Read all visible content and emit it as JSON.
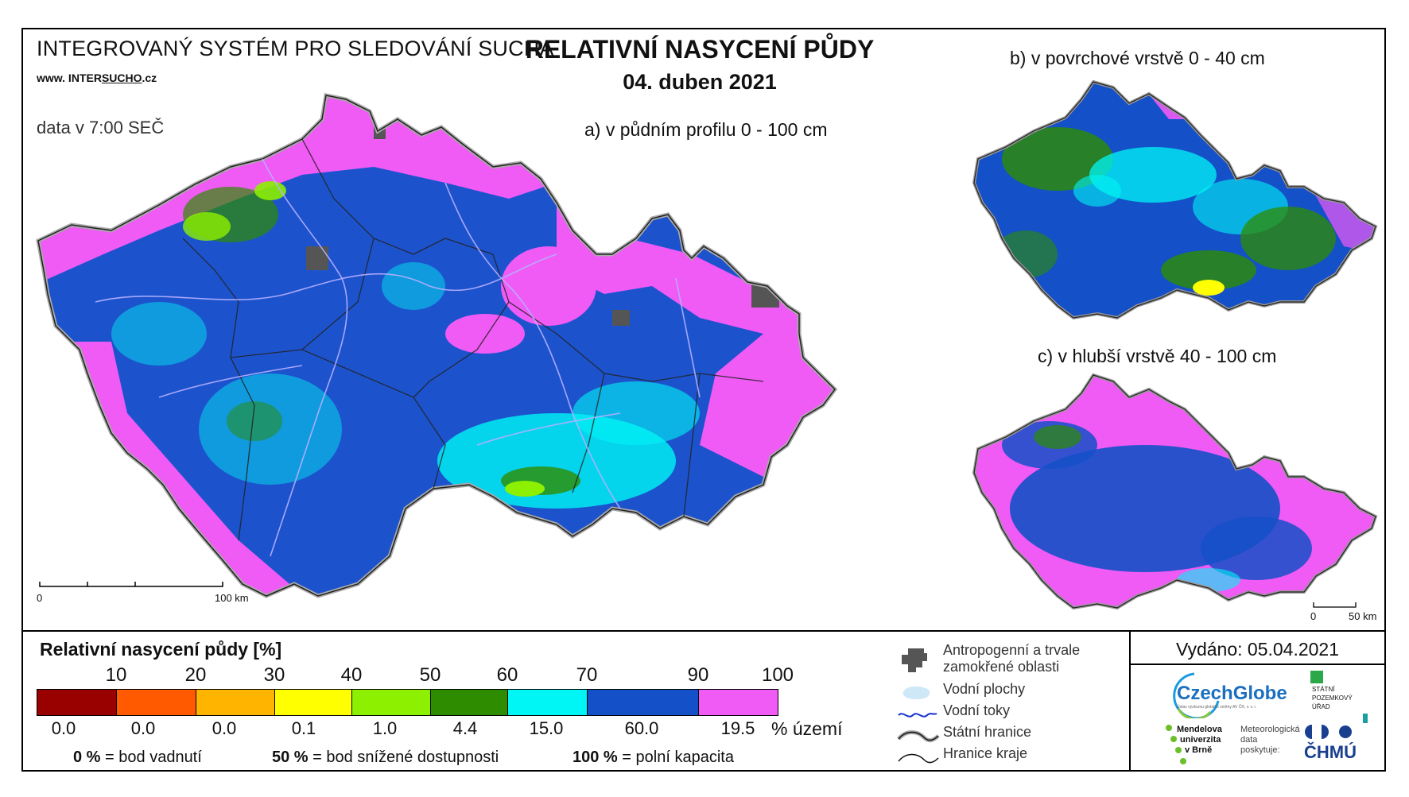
{
  "header": {
    "system_name": "INTEGROVANÝ SYSTÉM PRO SLEDOVÁNÍ SUCHA",
    "website_prefix": "www. INTER",
    "website_underlined": "SUCHO",
    "website_suffix": ".cz",
    "data_time": "data v 7:00 SEČ"
  },
  "title": {
    "main": "RELATIVNÍ NASYCENÍ PŮDY",
    "date": "04. duben 2021"
  },
  "maps": {
    "a_label": "a) v půdním profilu 0 - 100 cm",
    "b_label": "b) v povrchové vrstvě 0 - 40 cm",
    "c_label": "c) v hlubší vrstvě 40 - 100 cm",
    "scale_main": {
      "start": "0",
      "end": "100 km"
    },
    "scale_small": {
      "start": "0",
      "end": "50 km"
    }
  },
  "legend": {
    "title": "Relativní nasycení půdy [%]",
    "thresholds": [
      "10",
      "20",
      "30",
      "40",
      "50",
      "60",
      "70",
      "90",
      "100"
    ],
    "classes": [
      {
        "color": "#990000",
        "area_pct": "0.0"
      },
      {
        "color": "#ff5a00",
        "area_pct": "0.0"
      },
      {
        "color": "#ffb400",
        "area_pct": "0.0"
      },
      {
        "color": "#ffff00",
        "area_pct": "0.1"
      },
      {
        "color": "#8cf000",
        "area_pct": "1.0"
      },
      {
        "color": "#2d8c00",
        "area_pct": "4.4"
      },
      {
        "color": "#00f5f5",
        "area_pct": "15.0"
      },
      {
        "color": "#1450c8",
        "area_pct": "60.0"
      },
      {
        "color": "#f05af5",
        "area_pct": "19.5"
      }
    ],
    "area_unit": "% území",
    "notes": [
      {
        "value": "0 %",
        "text": "= bod vadnutí"
      },
      {
        "value": "50 %",
        "text": "= bod snížené dostupnosti"
      },
      {
        "value": "100 %",
        "text": "= polní kapacita"
      }
    ]
  },
  "symbol_legend": {
    "anthropogenic": "Antropogenní a trvale zamokřené oblasti",
    "water_bodies": "Vodní plochy",
    "streams": "Vodní toky",
    "state_border": "Státní hranice",
    "region_border": "Hranice kraje"
  },
  "issued": "Vydáno: 05.04.2021",
  "logos": {
    "czechglobe": "CzechGlobe",
    "czechglobe_sub": "Ústav výzkumu globální změny AV ČR, v. v. i.",
    "spu_line1": "STÁTNÍ",
    "spu_line2": "POZEMKOVÝ",
    "spu_line3": "ÚŘAD",
    "mendel_line1": "Mendelova",
    "mendel_line2": "univerzita",
    "mendel_line3": "v Brně",
    "meteo_line1": "Meteorologická",
    "meteo_line2": "data",
    "meteo_line3": "poskytuje:",
    "chmu": "ČHMÚ"
  },
  "colors": {
    "magenta": "#f05af5",
    "blue": "#1450c8",
    "cyan": "#00f5f5",
    "dark_green": "#2d8c00",
    "light_green": "#8cf000",
    "yellow": "#ffff00"
  }
}
